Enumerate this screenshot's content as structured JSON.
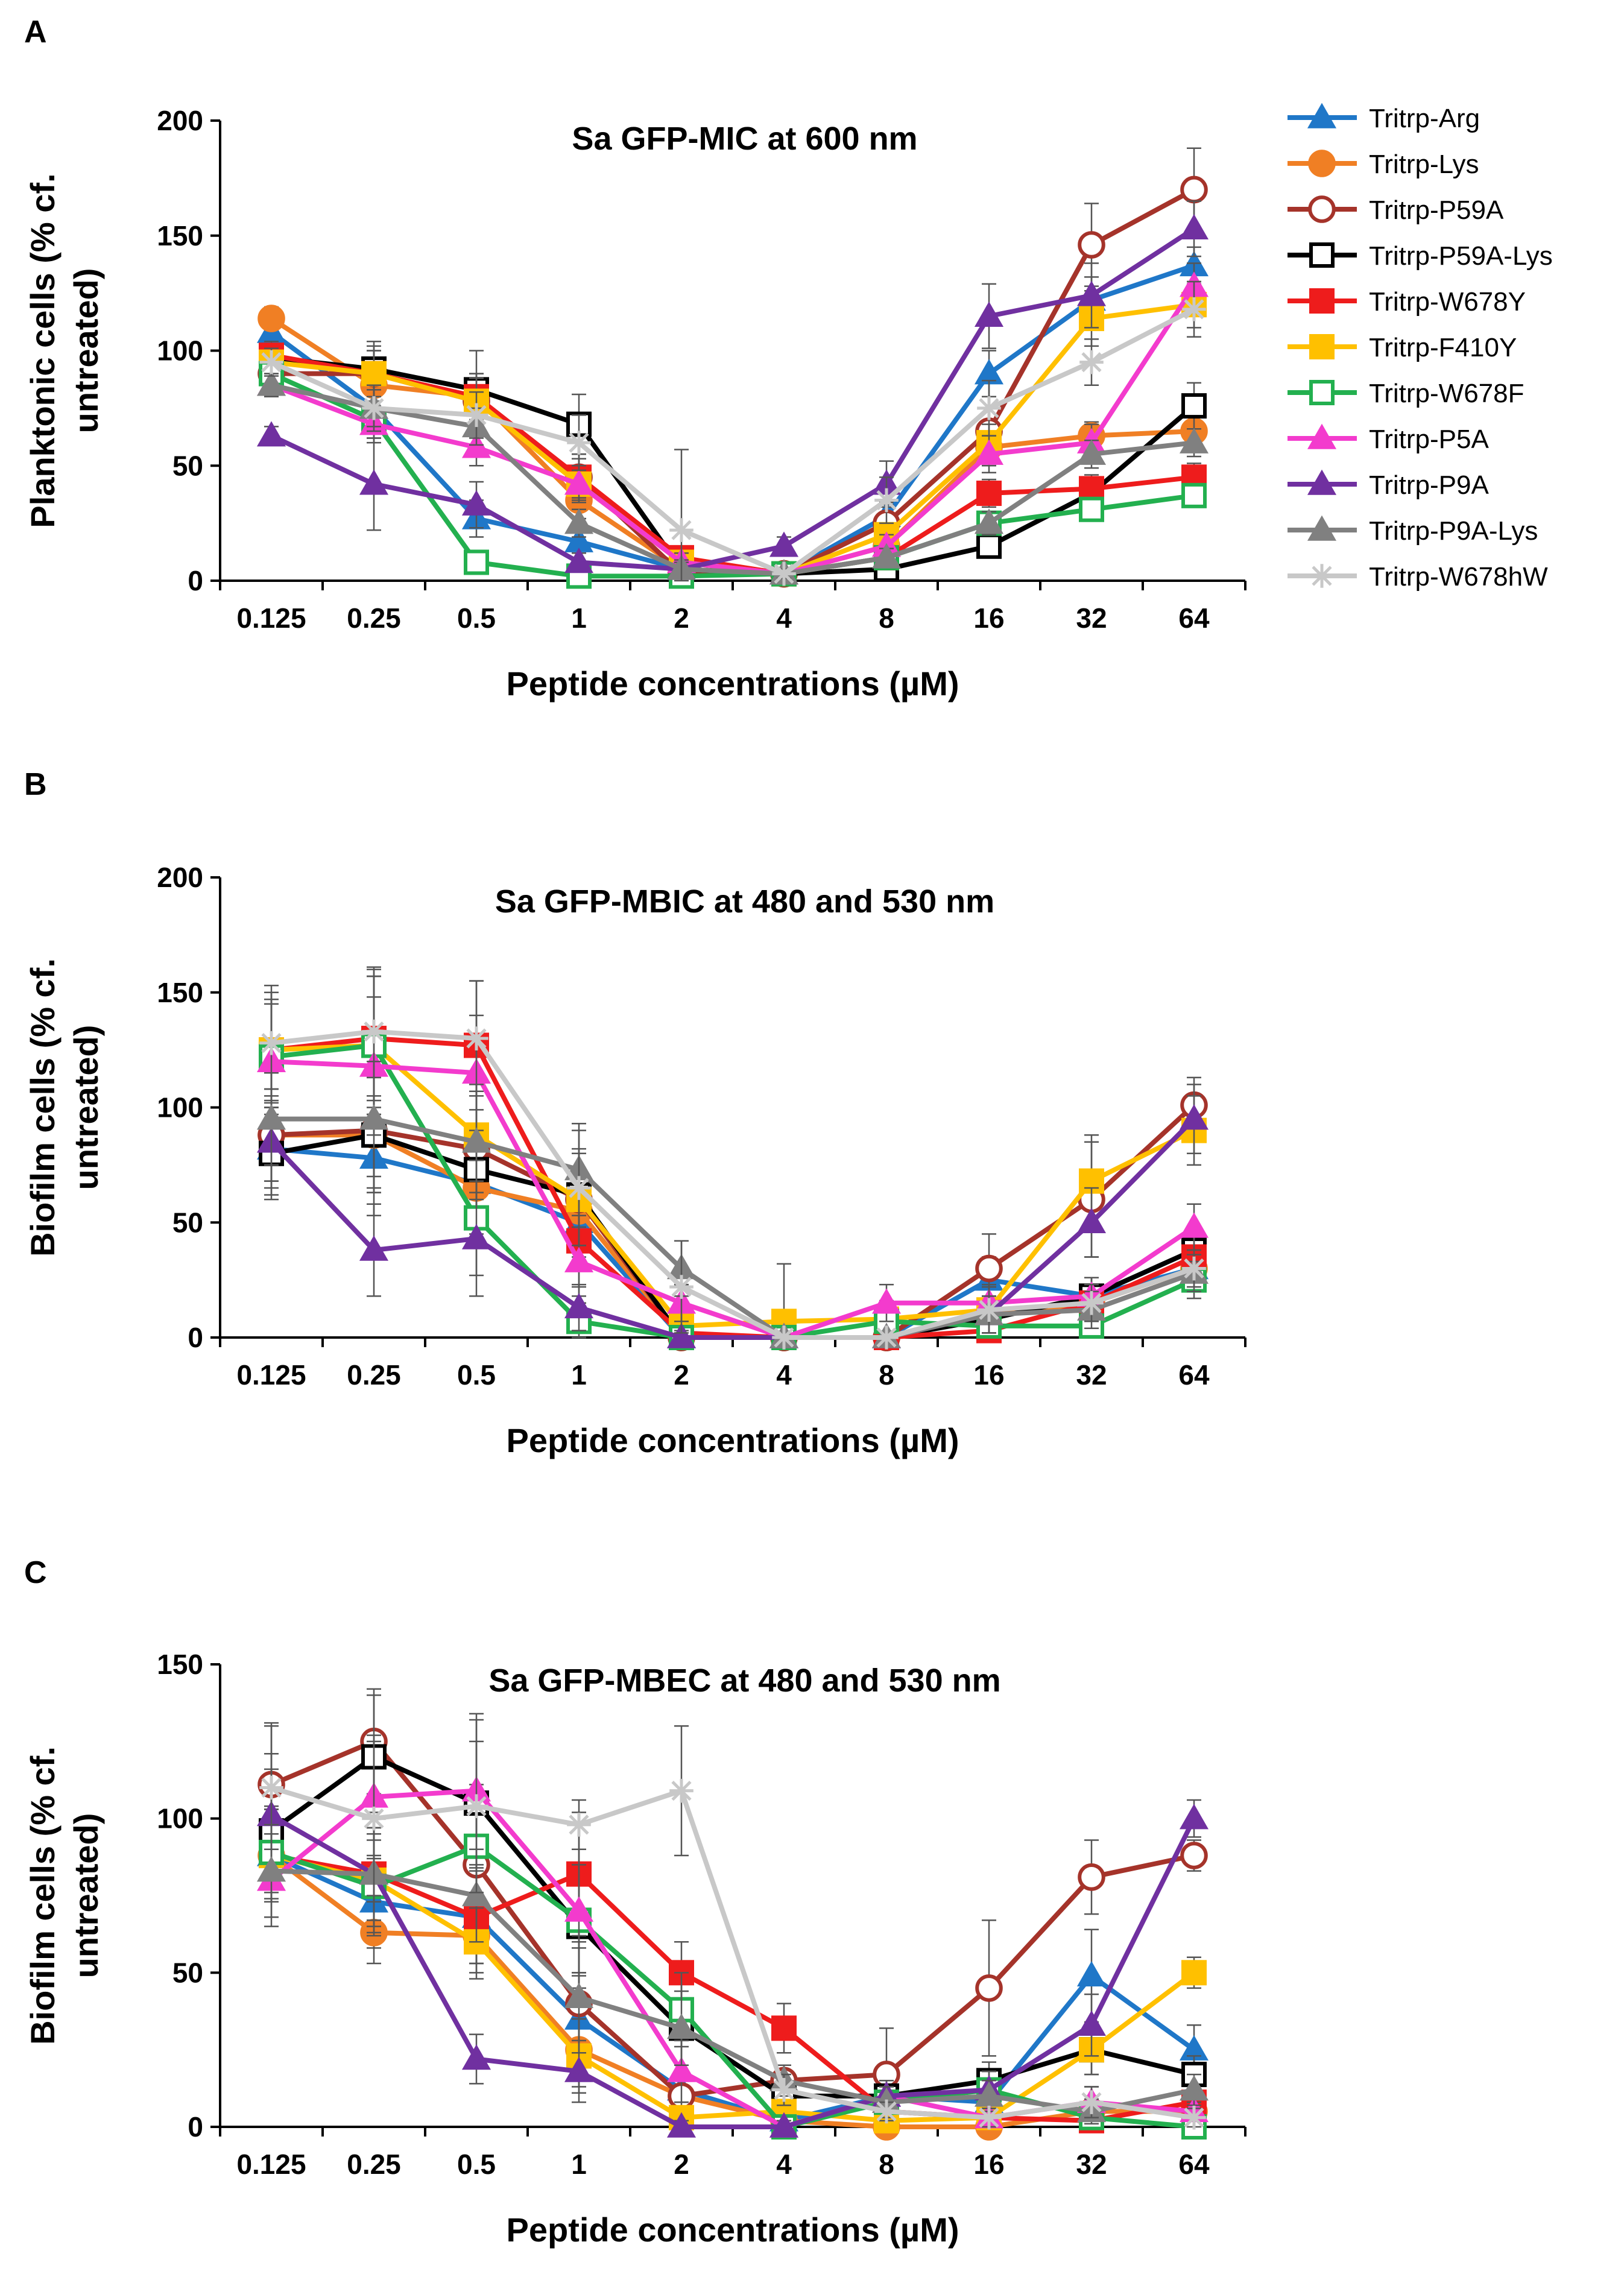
{
  "chart_data": [
    {
      "type": "line",
      "panel_label": "A",
      "title": "Sa GFP-MIC at 600 nm",
      "xlabel": "Peptide concentrations (µM)",
      "ylabel": "Planktonic cells (% cf. untreated)",
      "ylabel_lines": [
        "Planktonic cells (% cf.",
        "untreated)"
      ],
      "ylim": [
        0,
        200
      ],
      "yticks": [
        0,
        50,
        100,
        150,
        200
      ],
      "categories": [
        "0.125",
        "0.25",
        "0.5",
        "1",
        "2",
        "4",
        "8",
        "16",
        "32",
        "64"
      ],
      "series": [
        {
          "name": "Tritrp-Arg",
          "values": [
            108,
            75,
            27,
            17,
            5,
            3,
            28,
            90,
            122,
            137
          ],
          "errors": [
            5,
            8,
            8,
            5,
            4,
            2,
            6,
            10,
            10,
            8
          ]
        },
        {
          "name": "Tritrp-Lys",
          "values": [
            114,
            85,
            80,
            35,
            5,
            3,
            15,
            58,
            63,
            65
          ],
          "errors": [
            5,
            10,
            10,
            8,
            4,
            2,
            5,
            8,
            6,
            6
          ]
        },
        {
          "name": "Tritrp-P59A",
          "values": [
            90,
            90,
            78,
            45,
            3,
            3,
            25,
            65,
            146,
            170
          ],
          "errors": [
            6,
            10,
            10,
            10,
            4,
            2,
            8,
            10,
            18,
            18
          ]
        },
        {
          "name": "Tritrp-P59A-Lys",
          "values": [
            97,
            92,
            83,
            68,
            5,
            3,
            5,
            15,
            38,
            76
          ],
          "errors": [
            5,
            12,
            17,
            13,
            5,
            2,
            3,
            4,
            5,
            10
          ]
        },
        {
          "name": "Tritrp-W678Y",
          "values": [
            98,
            90,
            80,
            45,
            10,
            3,
            10,
            38,
            40,
            45
          ],
          "errors": [
            6,
            10,
            10,
            8,
            5,
            2,
            4,
            6,
            6,
            6
          ]
        },
        {
          "name": "Tritrp-F410Y",
          "values": [
            95,
            90,
            78,
            42,
            8,
            3,
            20,
            60,
            114,
            120
          ],
          "errors": [
            5,
            12,
            10,
            8,
            4,
            2,
            5,
            8,
            12,
            10
          ]
        },
        {
          "name": "Tritrp-W678F",
          "values": [
            90,
            70,
            8,
            2,
            2,
            3,
            10,
            25,
            31,
            37
          ],
          "errors": [
            5,
            8,
            4,
            2,
            2,
            2,
            3,
            4,
            4,
            5
          ]
        },
        {
          "name": "Tritrp-P5A",
          "values": [
            85,
            68,
            58,
            42,
            8,
            3,
            15,
            55,
            60,
            128
          ],
          "errors": [
            5,
            8,
            8,
            6,
            4,
            2,
            5,
            8,
            8,
            10
          ]
        },
        {
          "name": "Tritrp-P9A",
          "values": [
            63,
            42,
            33,
            8,
            5,
            15,
            42,
            115,
            124,
            153
          ],
          "errors": [
            4,
            20,
            10,
            4,
            3,
            4,
            10,
            14,
            14,
            12
          ]
        },
        {
          "name": "Tritrp-P9A-Lys",
          "values": [
            85,
            75,
            67,
            25,
            5,
            3,
            10,
            25,
            55,
            60
          ],
          "errors": [
            5,
            8,
            8,
            6,
            4,
            2,
            4,
            5,
            6,
            6
          ]
        },
        {
          "name": "Tritrp-W678hW",
          "values": [
            95,
            75,
            72,
            60,
            22,
            3,
            35,
            75,
            95,
            118
          ],
          "errors": [
            6,
            10,
            10,
            12,
            35,
            2,
            10,
            12,
            10,
            12
          ]
        }
      ]
    },
    {
      "type": "line",
      "panel_label": "B",
      "title": "Sa GFP-MBIC at 480 and 530 nm",
      "xlabel": "Peptide concentrations (µM)",
      "ylabel": "Biofilm cells (% cf. untreated)",
      "ylabel_lines": [
        "Biofilm cells (% cf.",
        "untreated)"
      ],
      "ylim": [
        0,
        200
      ],
      "yticks": [
        0,
        50,
        100,
        150,
        200
      ],
      "categories": [
        "0.125",
        "0.25",
        "0.5",
        "1",
        "2",
        "4",
        "8",
        "16",
        "32",
        "64"
      ],
      "series": [
        {
          "name": "Tritrp-Arg",
          "values": [
            82,
            78,
            67,
            50,
            0,
            0,
            0,
            25,
            18,
            30
          ],
          "errors": [
            20,
            25,
            20,
            15,
            5,
            0,
            0,
            10,
            8,
            8
          ]
        },
        {
          "name": "Tritrp-Lys",
          "values": [
            88,
            88,
            65,
            55,
            0,
            0,
            0,
            10,
            15,
            30
          ],
          "errors": [
            20,
            25,
            20,
            15,
            5,
            0,
            0,
            8,
            8,
            8
          ]
        },
        {
          "name": "Tritrp-P59A",
          "values": [
            88,
            90,
            82,
            60,
            0,
            0,
            0,
            30,
            60,
            101
          ],
          "errors": [
            20,
            25,
            25,
            20,
            5,
            0,
            0,
            15,
            25,
            12
          ]
        },
        {
          "name": "Tritrp-P59A-Lys",
          "values": [
            80,
            88,
            73,
            62,
            0,
            0,
            0,
            8,
            18,
            38
          ],
          "errors": [
            20,
            25,
            20,
            20,
            5,
            0,
            0,
            8,
            8,
            10
          ]
        },
        {
          "name": "Tritrp-W678Y",
          "values": [
            125,
            130,
            127,
            42,
            2,
            0,
            0,
            3,
            15,
            35
          ],
          "errors": [
            25,
            30,
            28,
            20,
            5,
            0,
            0,
            4,
            8,
            10
          ]
        },
        {
          "name": "Tritrp-F410Y",
          "values": [
            125,
            127,
            88,
            60,
            5,
            7,
            8,
            12,
            68,
            90
          ],
          "errors": [
            25,
            30,
            25,
            20,
            5,
            25,
            8,
            10,
            20,
            15
          ]
        },
        {
          "name": "Tritrp-W678F",
          "values": [
            122,
            127,
            52,
            7,
            0,
            0,
            7,
            5,
            5,
            25
          ],
          "errors": [
            25,
            30,
            25,
            8,
            3,
            0,
            6,
            4,
            4,
            8
          ]
        },
        {
          "name": "Tritrp-P5A",
          "values": [
            120,
            118,
            115,
            33,
            15,
            0,
            15,
            15,
            18,
            48
          ],
          "errors": [
            25,
            30,
            25,
            15,
            8,
            0,
            8,
            8,
            8,
            10
          ]
        },
        {
          "name": "Tritrp-P9A",
          "values": [
            85,
            38,
            43,
            13,
            0,
            0,
            0,
            10,
            50,
            95
          ],
          "errors": [
            20,
            20,
            25,
            10,
            3,
            0,
            0,
            8,
            15,
            15
          ]
        },
        {
          "name": "Tritrp-P9A-Lys",
          "values": [
            95,
            95,
            85,
            73,
            30,
            0,
            0,
            10,
            12,
            28
          ],
          "errors": [
            20,
            25,
            25,
            20,
            12,
            0,
            0,
            8,
            8,
            8
          ]
        },
        {
          "name": "Tritrp-W678hW",
          "values": [
            128,
            133,
            130,
            65,
            22,
            0,
            0,
            12,
            15,
            30
          ],
          "errors": [
            25,
            28,
            25,
            25,
            20,
            0,
            0,
            10,
            8,
            8
          ]
        }
      ]
    },
    {
      "type": "line",
      "panel_label": "C",
      "title": "Sa GFP-MBEC at 480 and 530 nm",
      "xlabel": "Peptide concentrations (µM)",
      "ylabel": "Biofilm cells (% cf. untreated)",
      "ylabel_lines": [
        "Biofilm cells (% cf.",
        "untreated)"
      ],
      "ylim": [
        0,
        150
      ],
      "yticks": [
        0,
        50,
        100,
        150
      ],
      "categories": [
        "0.125",
        "0.25",
        "0.5",
        "1",
        "2",
        "4",
        "8",
        "16",
        "32",
        "64"
      ],
      "series": [
        {
          "name": "Tritrp-Arg",
          "values": [
            88,
            73,
            68,
            35,
            12,
            2,
            10,
            8,
            49,
            25
          ],
          "errors": [
            15,
            15,
            15,
            15,
            8,
            3,
            5,
            6,
            15,
            8
          ]
        },
        {
          "name": "Tritrp-Lys",
          "values": [
            88,
            63,
            62,
            25,
            10,
            2,
            0,
            0,
            5,
            5
          ],
          "errors": [
            15,
            10,
            12,
            12,
            8,
            3,
            3,
            3,
            5,
            5
          ]
        },
        {
          "name": "Tritrp-P59A",
          "values": [
            111,
            125,
            85,
            40,
            10,
            15,
            17,
            45,
            81,
            88
          ],
          "errors": [
            20,
            17,
            20,
            18,
            10,
            5,
            15,
            22,
            12,
            5
          ]
        },
        {
          "name": "Tritrp-P59A-Lys",
          "values": [
            96,
            120,
            105,
            65,
            32,
            10,
            10,
            15,
            25,
            17
          ],
          "errors": [
            20,
            20,
            20,
            20,
            15,
            5,
            5,
            6,
            8,
            6
          ]
        },
        {
          "name": "Tritrp-W678Y",
          "values": [
            88,
            82,
            68,
            82,
            50,
            32,
            5,
            3,
            2,
            8
          ],
          "errors": [
            15,
            15,
            15,
            20,
            10,
            8,
            3,
            3,
            2,
            4
          ]
        },
        {
          "name": "Tritrp-F410Y",
          "values": [
            88,
            80,
            60,
            23,
            3,
            5,
            2,
            3,
            25,
            50
          ],
          "errors": [
            15,
            15,
            12,
            12,
            5,
            3,
            2,
            3,
            8,
            5
          ]
        },
        {
          "name": "Tritrp-W678F",
          "values": [
            89,
            78,
            91,
            67,
            38,
            0,
            8,
            12,
            3,
            0
          ],
          "errors": [
            15,
            15,
            20,
            18,
            12,
            2,
            5,
            6,
            3,
            2
          ]
        },
        {
          "name": "Tritrp-P5A",
          "values": [
            80,
            107,
            109,
            70,
            18,
            0,
            10,
            3,
            8,
            5
          ],
          "errors": [
            15,
            20,
            25,
            20,
            10,
            2,
            5,
            3,
            5,
            3
          ]
        },
        {
          "name": "Tritrp-P9A",
          "values": [
            101,
            82,
            22,
            18,
            0,
            0,
            10,
            12,
            33,
            100
          ],
          "errors": [
            20,
            20,
            8,
            10,
            2,
            2,
            5,
            6,
            10,
            6
          ]
        },
        {
          "name": "Tritrp-P9A-Lys",
          "values": [
            83,
            82,
            75,
            42,
            32,
            15,
            8,
            10,
            5,
            12
          ],
          "errors": [
            15,
            15,
            15,
            18,
            12,
            5,
            5,
            5,
            4,
            5
          ]
        },
        {
          "name": "Tritrp-W678hW",
          "values": [
            110,
            100,
            104,
            98,
            109,
            12,
            5,
            3,
            8,
            3
          ],
          "errors": [
            20,
            25,
            28,
            8,
            21,
            5,
            3,
            3,
            5,
            3
          ]
        }
      ]
    }
  ],
  "series_style": [
    {
      "name": "Tritrp-Arg",
      "color": "#1f77c8",
      "marker": "triangle",
      "filled": true
    },
    {
      "name": "Tritrp-Lys",
      "color": "#f07f24",
      "marker": "circle",
      "filled": true
    },
    {
      "name": "Tritrp-P59A",
      "color": "#a5332a",
      "marker": "circle",
      "filled": false
    },
    {
      "name": "Tritrp-P59A-Lys",
      "color": "#000000",
      "marker": "square",
      "filled": false
    },
    {
      "name": "Tritrp-W678Y",
      "color": "#ee1c1c",
      "marker": "square",
      "filled": true
    },
    {
      "name": "Tritrp-F410Y",
      "color": "#ffc000",
      "marker": "square",
      "filled": true
    },
    {
      "name": "Tritrp-W678F",
      "color": "#23b04f",
      "marker": "square",
      "filled": false
    },
    {
      "name": "Tritrp-P5A",
      "color": "#f33bcd",
      "marker": "triangle",
      "filled": true
    },
    {
      "name": "Tritrp-P9A",
      "color": "#7030a0",
      "marker": "triangle",
      "filled": true
    },
    {
      "name": "Tritrp-P9A-Lys",
      "color": "#808080",
      "marker": "triangle",
      "filled": true
    },
    {
      "name": "Tritrp-W678hW",
      "color": "#c8c8c8",
      "marker": "star",
      "filled": false
    }
  ]
}
